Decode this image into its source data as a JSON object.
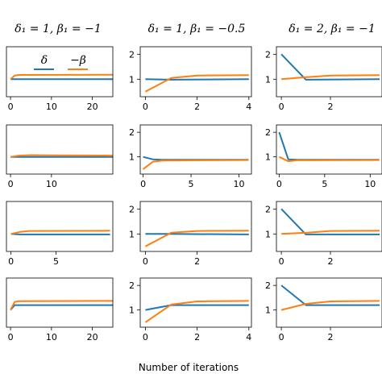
{
  "chart_data": {
    "type": "line",
    "xlabel": "Number of iterations",
    "column_titles": [
      "δ₁ = 1, β₁ = −1",
      "δ₁ = 1, β₁ = −0.5",
      "δ₁ = 2, β₁ = −1"
    ],
    "legend": {
      "placement": "top-left of first panel",
      "entries": [
        "δ",
        "−β"
      ]
    },
    "colors": {
      "delta": "#1f77b4",
      "neg_beta": "#ff7f0e"
    },
    "grid": false,
    "panels": [
      {
        "row": 0,
        "col": 0,
        "xlim": [
          -1,
          25
        ],
        "ylim": [
          0.3,
          2.3
        ],
        "xticks": [
          0,
          10,
          20
        ],
        "xtick_labels": [
          "0",
          "10",
          "20"
        ],
        "yticks": [],
        "ytick_labels": [],
        "series": [
          {
            "name": "δ",
            "x": [
              0,
              25
            ],
            "y": [
              1,
              1
            ]
          },
          {
            "name": "−β",
            "x": [
              0,
              1,
              2,
              25
            ],
            "y": [
              1,
              1.15,
              1.17,
              1.18
            ]
          }
        ]
      },
      {
        "row": 0,
        "col": 1,
        "xlim": [
          -0.2,
          4.1
        ],
        "ylim": [
          0.3,
          2.3
        ],
        "xticks": [
          0,
          2,
          4
        ],
        "xtick_labels": [
          "0",
          "2",
          "4"
        ],
        "yticks": [
          1,
          2
        ],
        "ytick_labels": [
          "1",
          "2"
        ],
        "series": [
          {
            "name": "δ",
            "x": [
              0,
              1,
              4
            ],
            "y": [
              1,
              0.98,
              1
            ]
          },
          {
            "name": "−β",
            "x": [
              0,
              1,
              2,
              4
            ],
            "y": [
              0.5,
              1.05,
              1.15,
              1.16
            ]
          }
        ]
      },
      {
        "row": 0,
        "col": 2,
        "xlim": [
          -0.2,
          4.1
        ],
        "ylim": [
          0.3,
          2.3
        ],
        "xticks": [
          0,
          2
        ],
        "xtick_labels": [
          "0",
          "2"
        ],
        "yticks": [
          1,
          2
        ],
        "ytick_labels": [
          "1",
          "2"
        ],
        "series": [
          {
            "name": "δ",
            "x": [
              0,
              1,
              4
            ],
            "y": [
              2,
              0.98,
              1
            ]
          },
          {
            "name": "−β",
            "x": [
              0,
              1,
              2,
              4
            ],
            "y": [
              1,
              1.08,
              1.15,
              1.16
            ]
          }
        ]
      },
      {
        "row": 1,
        "col": 0,
        "xlim": [
          -1,
          25
        ],
        "ylim": [
          0.3,
          2.3
        ],
        "xticks": [
          0,
          10
        ],
        "xtick_labels": [
          "0",
          "10"
        ],
        "yticks": [],
        "ytick_labels": [],
        "series": [
          {
            "name": "δ",
            "x": [
              0,
              25
            ],
            "y": [
              1,
              1
            ]
          },
          {
            "name": "−β",
            "x": [
              0,
              2,
              5,
              10,
              25
            ],
            "y": [
              1,
              1.05,
              1.07,
              1.06,
              1.05
            ]
          }
        ]
      },
      {
        "row": 1,
        "col": 1,
        "xlim": [
          -0.3,
          11.3
        ],
        "ylim": [
          0.3,
          2.3
        ],
        "xticks": [
          0,
          5,
          10
        ],
        "xtick_labels": [
          "0",
          "5",
          "10"
        ],
        "yticks": [
          1,
          2
        ],
        "ytick_labels": [
          "1",
          "2"
        ],
        "series": [
          {
            "name": "δ",
            "x": [
              0,
              1,
              2,
              11
            ],
            "y": [
              1,
              0.9,
              0.88,
              0.88
            ]
          },
          {
            "name": "−β",
            "x": [
              0,
              1,
              2,
              11
            ],
            "y": [
              0.5,
              0.8,
              0.85,
              0.87
            ]
          }
        ]
      },
      {
        "row": 1,
        "col": 2,
        "xlim": [
          -0.3,
          11.3
        ],
        "ylim": [
          0.3,
          2.3
        ],
        "xticks": [
          0,
          5,
          10
        ],
        "xtick_labels": [
          "0",
          "5",
          "10"
        ],
        "yticks": [
          1,
          2
        ],
        "ytick_labels": [
          "1",
          "2"
        ],
        "series": [
          {
            "name": "δ",
            "x": [
              0,
              1,
              2,
              11
            ],
            "y": [
              2,
              0.9,
              0.88,
              0.88
            ]
          },
          {
            "name": "−β",
            "x": [
              0,
              1,
              2,
              11
            ],
            "y": [
              1,
              0.82,
              0.86,
              0.87
            ]
          }
        ]
      },
      {
        "row": 2,
        "col": 0,
        "xlim": [
          -0.5,
          11.3
        ],
        "ylim": [
          0.3,
          2.3
        ],
        "xticks": [
          0,
          5
        ],
        "xtick_labels": [
          "0",
          "5"
        ],
        "yticks": [],
        "ytick_labels": [],
        "series": [
          {
            "name": "δ",
            "x": [
              0,
              1,
              11
            ],
            "y": [
              1,
              0.98,
              0.98
            ]
          },
          {
            "name": "−β",
            "x": [
              0,
              1,
              2,
              11
            ],
            "y": [
              1,
              1.08,
              1.12,
              1.13
            ]
          }
        ]
      },
      {
        "row": 2,
        "col": 1,
        "xlim": [
          -0.2,
          4.1
        ],
        "ylim": [
          0.3,
          2.3
        ],
        "xticks": [
          0,
          2
        ],
        "xtick_labels": [
          "0",
          "2"
        ],
        "yticks": [
          1,
          2
        ],
        "ytick_labels": [
          "1",
          "2"
        ],
        "series": [
          {
            "name": "δ",
            "x": [
              0,
              1,
              4
            ],
            "y": [
              1,
              1,
              0.98
            ]
          },
          {
            "name": "−β",
            "x": [
              0,
              1,
              2,
              4
            ],
            "y": [
              0.5,
              1.05,
              1.12,
              1.13
            ]
          }
        ]
      },
      {
        "row": 2,
        "col": 2,
        "xlim": [
          -0.2,
          4.1
        ],
        "ylim": [
          0.3,
          2.3
        ],
        "xticks": [
          0,
          2
        ],
        "xtick_labels": [
          "0",
          "2"
        ],
        "yticks": [
          1,
          2
        ],
        "ytick_labels": [
          "1",
          "2"
        ],
        "series": [
          {
            "name": "δ",
            "x": [
              0,
              1,
              4
            ],
            "y": [
              2,
              0.98,
              0.98
            ]
          },
          {
            "name": "−β",
            "x": [
              0,
              1,
              2,
              4
            ],
            "y": [
              1,
              1.05,
              1.12,
              1.13
            ]
          }
        ]
      },
      {
        "row": 3,
        "col": 0,
        "xlim": [
          -1,
          25
        ],
        "ylim": [
          0.3,
          2.3
        ],
        "xticks": [
          0,
          10,
          20
        ],
        "xtick_labels": [
          "0",
          "10",
          "20"
        ],
        "yticks": [],
        "ytick_labels": [],
        "series": [
          {
            "name": "δ",
            "x": [
              0,
              1,
              25
            ],
            "y": [
              1,
              1.2,
              1.2
            ]
          },
          {
            "name": "−β",
            "x": [
              0,
              1,
              2,
              25
            ],
            "y": [
              1,
              1.33,
              1.36,
              1.37
            ]
          }
        ]
      },
      {
        "row": 3,
        "col": 1,
        "xlim": [
          -0.2,
          4.1
        ],
        "ylim": [
          0.3,
          2.3
        ],
        "xticks": [
          0,
          2,
          4
        ],
        "xtick_labels": [
          "0",
          "2",
          "4"
        ],
        "yticks": [
          1,
          2
        ],
        "ytick_labels": [
          "1",
          "2"
        ],
        "series": [
          {
            "name": "δ",
            "x": [
              0,
              1,
              4
            ],
            "y": [
              1,
              1.2,
              1.2
            ]
          },
          {
            "name": "−β",
            "x": [
              0,
              1,
              2,
              4
            ],
            "y": [
              0.5,
              1.22,
              1.35,
              1.37
            ]
          }
        ]
      },
      {
        "row": 3,
        "col": 2,
        "xlim": [
          -0.2,
          4.1
        ],
        "ylim": [
          0.3,
          2.3
        ],
        "xticks": [
          0,
          2
        ],
        "xtick_labels": [
          "0",
          "2"
        ],
        "yticks": [
          1,
          2
        ],
        "ytick_labels": [
          "1",
          "2"
        ],
        "series": [
          {
            "name": "δ",
            "x": [
              0,
              1,
              4
            ],
            "y": [
              2,
              1.2,
              1.2
            ]
          },
          {
            "name": "−β",
            "x": [
              0,
              1,
              2,
              4
            ],
            "y": [
              1,
              1.25,
              1.35,
              1.37
            ]
          }
        ]
      }
    ]
  }
}
